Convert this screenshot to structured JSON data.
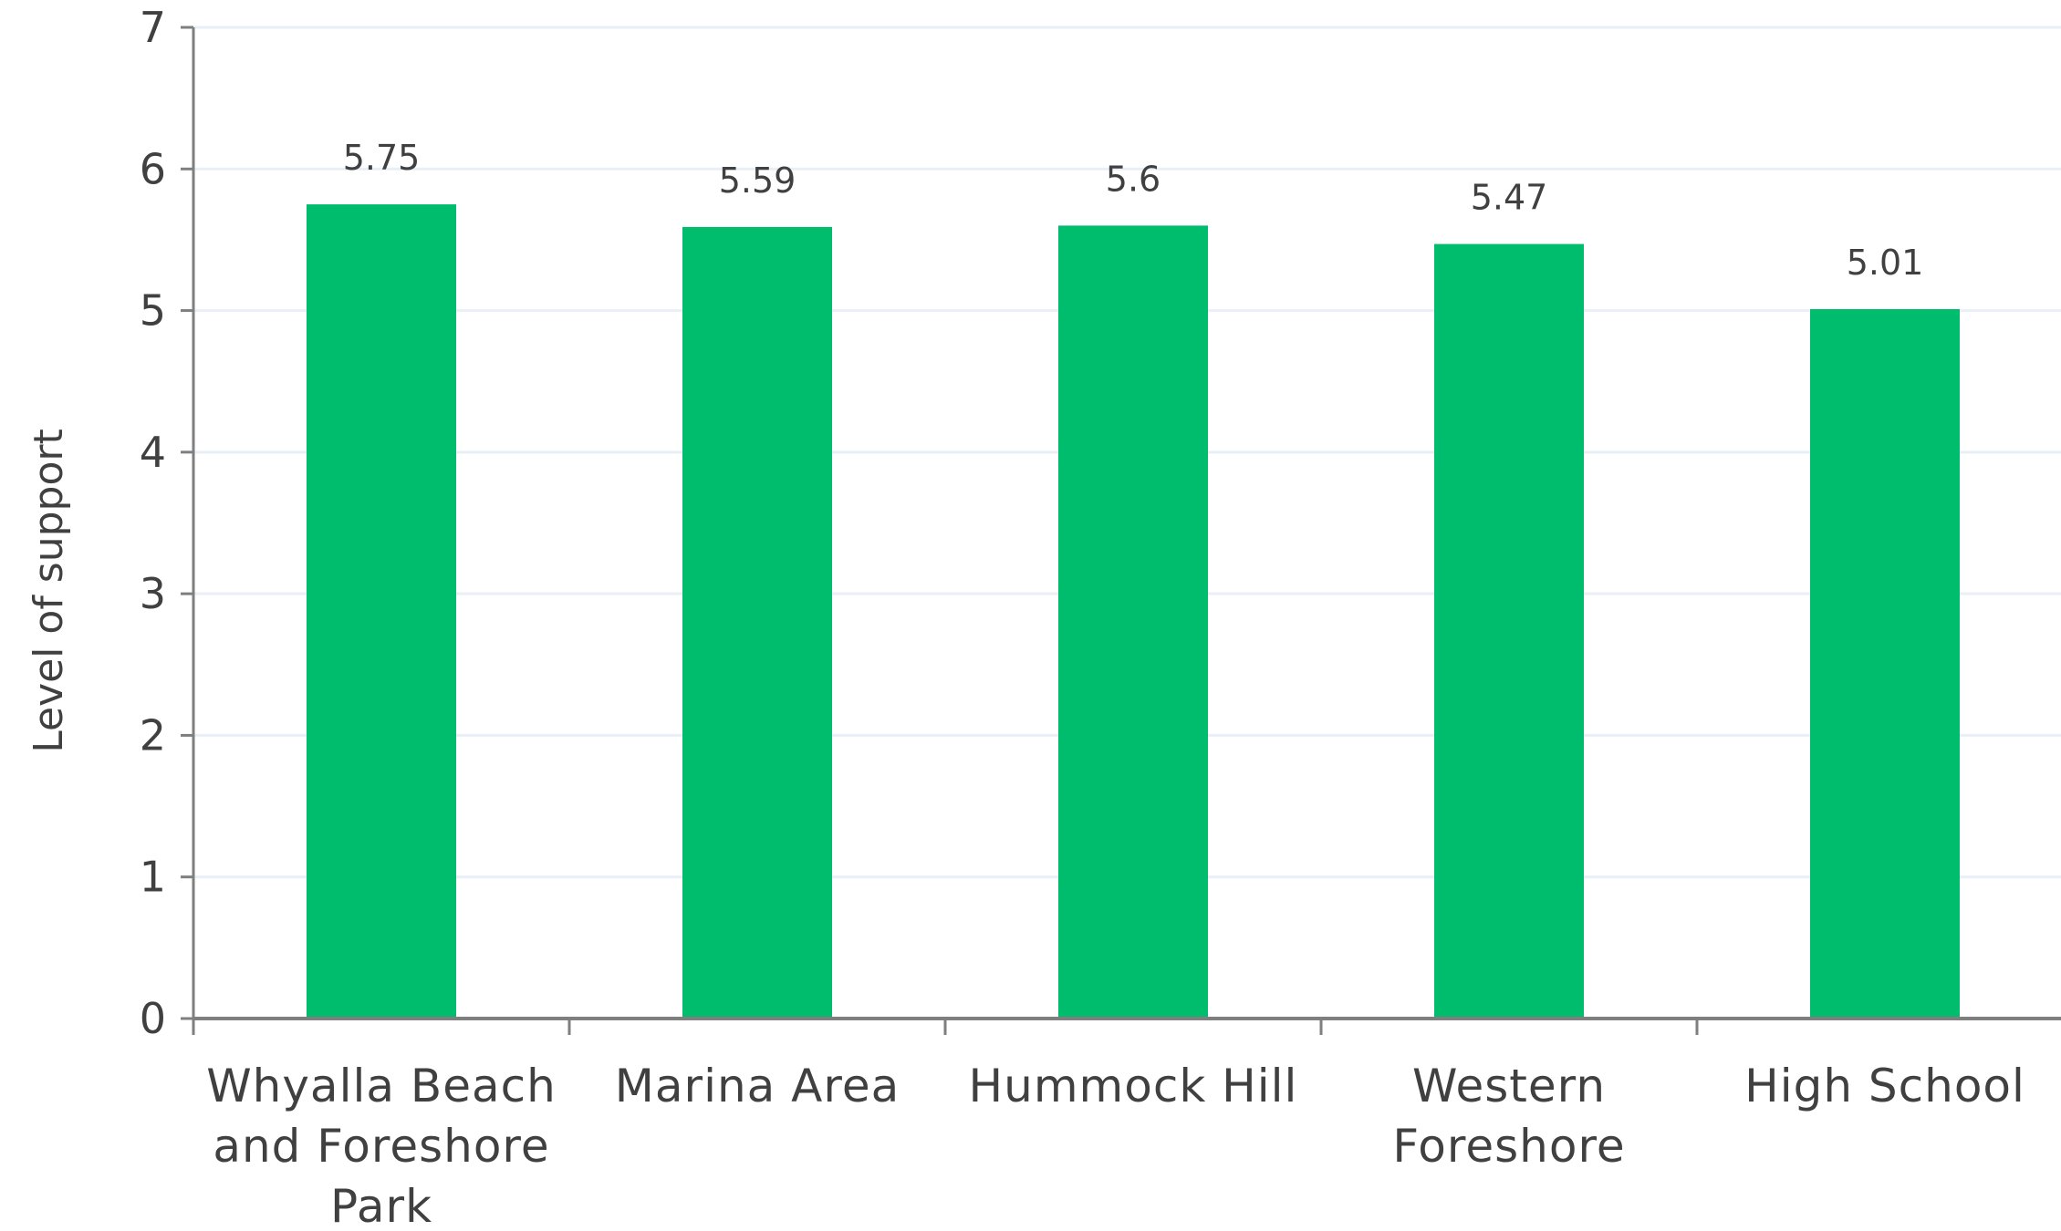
{
  "chart_data": {
    "type": "bar",
    "categories": [
      [
        "Whyalla Beach",
        "and Foreshore",
        "Park"
      ],
      [
        "Marina Area"
      ],
      [
        "Hummock Hill"
      ],
      [
        "Western",
        "Foreshore"
      ],
      [
        "High School"
      ]
    ],
    "values": [
      5.75,
      5.59,
      5.6,
      5.47,
      5.01
    ],
    "data_labels": [
      "5.75",
      "5.59",
      "5.6",
      "5.47",
      "5.01"
    ],
    "title": "",
    "xlabel": "",
    "ylabel": "Level of support",
    "ylim": [
      0,
      7
    ],
    "yticks": [
      0,
      1,
      2,
      3,
      4,
      5,
      6,
      7
    ],
    "grid": true,
    "legend": "none",
    "colors": {
      "bar": "#00BD6D",
      "axis": "#7f7f7f",
      "grid": "#e9eff7",
      "text": "#404040"
    }
  }
}
